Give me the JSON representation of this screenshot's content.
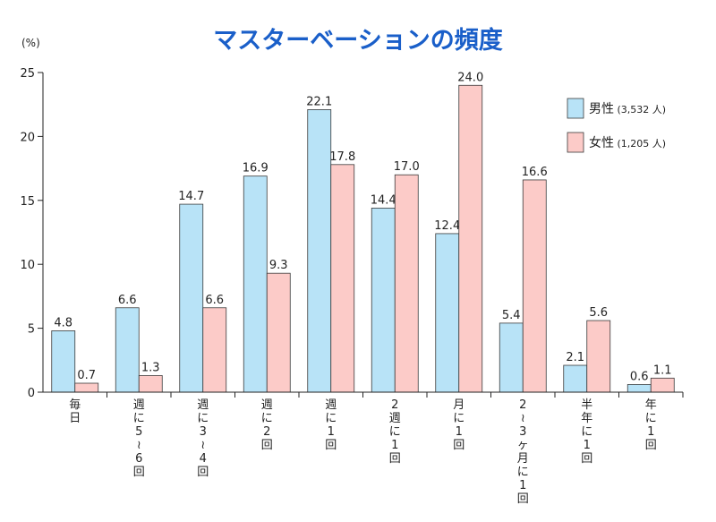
{
  "chart_data": {
    "type": "bar",
    "title": "マスターベーションの頻度",
    "yunit": "(%)",
    "ylim": [
      0,
      25
    ],
    "yticks": [
      0,
      5,
      10,
      15,
      20,
      25
    ],
    "categories": [
      "毎日",
      "週に5〜6回",
      "週に3〜4回",
      "週に2回",
      "週に1回",
      "2週に1回",
      "月に1回",
      "2〜3ヶ月に1回",
      "半年に1回",
      "年に1回"
    ],
    "series": [
      {
        "name": "男性",
        "note": "(3,532 人)",
        "color": "#b8e3f7",
        "values": [
          4.8,
          6.6,
          14.7,
          16.9,
          22.1,
          14.4,
          12.4,
          5.4,
          2.1,
          0.6
        ]
      },
      {
        "name": "女性",
        "note": "(1,205 人)",
        "color": "#fccbc8",
        "values": [
          0.7,
          1.3,
          6.6,
          9.3,
          17.8,
          17.0,
          24.0,
          16.6,
          5.6,
          1.1
        ]
      }
    ],
    "value_labels": [
      [
        "4.8",
        "6.6",
        "14.7",
        "16.9",
        "22.1",
        "14.4",
        "12.4",
        "5.4",
        "2.1",
        "0.6"
      ],
      [
        "0.7",
        "1.3",
        "6.6",
        "9.3",
        "17.8",
        "17.0",
        "24.0",
        "16.6",
        "5.6",
        "1.1"
      ]
    ],
    "legend_position": "top-right",
    "grid": false
  },
  "colors": {
    "title_fill": "#1a5fc9",
    "title_outline": "#ffffff",
    "bar_stroke": "#3a3a3a",
    "axis": "#222222"
  }
}
